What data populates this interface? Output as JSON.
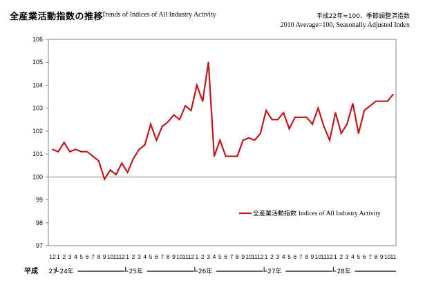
{
  "header": {
    "title_jp": "全産業活動指数の推移",
    "title_en": "Trends of Indices of All Industry Activity",
    "note_jp": "平成22年=100、季節調整済指数",
    "note_en": "2010 Average=100, Seasonally Adjusted Index"
  },
  "colors": {
    "series": "#c0151b",
    "axis": "#808080",
    "baseline": "#808080"
  },
  "chart_data": {
    "type": "line",
    "title": "全産業活動指数の推移",
    "ylim": [
      97,
      106
    ],
    "yticks": [
      106,
      105,
      104,
      103,
      102,
      101,
      100,
      99,
      98,
      97
    ],
    "grid": false,
    "reference_line": 100,
    "legend_position": "lower-right",
    "x_month_labels": [
      "12",
      "1",
      "2",
      "3",
      "4",
      "5",
      "6",
      "7",
      "8",
      "9",
      "10",
      "11",
      "12",
      "1",
      "2",
      "3",
      "4",
      "5",
      "6",
      "7",
      "8",
      "9",
      "10",
      "11",
      "12",
      "1",
      "2",
      "3",
      "4",
      "5",
      "6",
      "7",
      "8",
      "9",
      "10",
      "11",
      "12",
      "1",
      "2",
      "3",
      "4",
      "5",
      "6",
      "7",
      "8",
      "9",
      "10",
      "11",
      "12",
      "1",
      "2",
      "3",
      "4",
      "5",
      "6",
      "7",
      "8",
      "9",
      "10",
      "11"
    ],
    "era_prefix": "平成",
    "era_first": "23",
    "era_labels": [
      {
        "label": "24年",
        "start_index": 1,
        "end_index": 12
      },
      {
        "label": "25年",
        "start_index": 13,
        "end_index": 24
      },
      {
        "label": "26年",
        "start_index": 25,
        "end_index": 36
      },
      {
        "label": "27年",
        "start_index": 37,
        "end_index": 48
      },
      {
        "label": "28年",
        "start_index": 49,
        "end_index": 59
      }
    ],
    "series": [
      {
        "name": "全産業活動指数  Indices of All Industry Activity",
        "name_jp": "全産業活動指数",
        "name_en": "Indices of All Industry Activity",
        "values": [
          101.2,
          101.1,
          101.5,
          101.1,
          101.2,
          101.1,
          101.1,
          100.9,
          100.7,
          99.9,
          100.3,
          100.1,
          100.6,
          100.2,
          100.8,
          101.2,
          101.4,
          102.3,
          101.6,
          102.2,
          102.4,
          102.7,
          102.5,
          103.1,
          102.9,
          104.0,
          103.3,
          105.0,
          100.9,
          101.6,
          100.9,
          100.9,
          100.9,
          101.6,
          101.7,
          101.6,
          101.9,
          102.9,
          102.5,
          102.5,
          102.8,
          102.1,
          102.6,
          102.6,
          102.6,
          102.3,
          103.0,
          102.2,
          101.6,
          102.8,
          101.9,
          102.3,
          103.2,
          101.9,
          102.9,
          103.1,
          103.3,
          103.3,
          103.3,
          103.6
        ]
      }
    ]
  }
}
